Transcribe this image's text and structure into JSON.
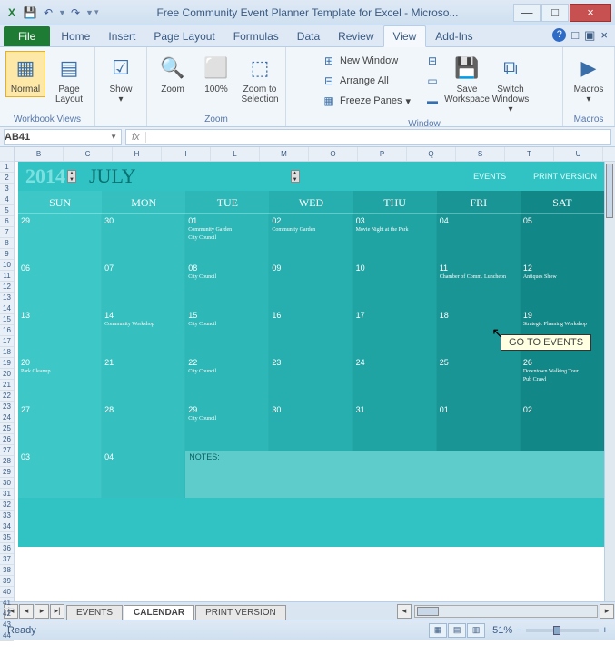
{
  "window": {
    "title": "Free Community Event Planner Template for Excel - Microso...",
    "min": "—",
    "max": "□",
    "close": "×"
  },
  "qat": {
    "excel": "X",
    "save": "💾",
    "undo": "↶",
    "redo": "↷"
  },
  "tabs": {
    "file": "File",
    "home": "Home",
    "insert": "Insert",
    "pagelayout": "Page Layout",
    "formulas": "Formulas",
    "data": "Data",
    "review": "Review",
    "view": "View",
    "addins": "Add-Ins"
  },
  "ribbon": {
    "normal": "Normal",
    "pagelayout": "Page Layout",
    "show": "Show",
    "zoom": "Zoom",
    "hundred": "100%",
    "zoomsel": "Zoom to Selection",
    "newwin": "New Window",
    "arrange": "Arrange All",
    "freeze": "Freeze Panes",
    "savews": "Save Workspace",
    "switchwin": "Switch Windows",
    "macros": "Macros",
    "g_views": "Workbook Views",
    "g_zoom": "Zoom",
    "g_window": "Window",
    "g_macros": "Macros"
  },
  "namebox": "AB41",
  "fx": "fx",
  "colheaders": [
    "B",
    "C",
    "H",
    "I",
    "L",
    "M",
    "O",
    "P",
    "Q",
    "S",
    "T",
    "U"
  ],
  "calendar": {
    "year": "2014",
    "month": "JULY",
    "events_link": "EVENTS",
    "print_link": "PRINT VERSION",
    "tooltip": "GO TO EVENTS",
    "days": [
      "SUN",
      "MON",
      "TUE",
      "WED",
      "THU",
      "FRI",
      "SAT"
    ],
    "col_colors": [
      "#3ec7c7",
      "#35bfbf",
      "#2eb7b7",
      "#27afaf",
      "#20a3a3",
      "#199595",
      "#128787"
    ],
    "weeks": [
      [
        {
          "d": "29"
        },
        {
          "d": "30"
        },
        {
          "d": "01",
          "e": [
            "Community Garden",
            "City Council"
          ]
        },
        {
          "d": "02",
          "e": [
            "Community Garden"
          ]
        },
        {
          "d": "03",
          "e": [
            "Movie Night at the Park"
          ]
        },
        {
          "d": "04"
        },
        {
          "d": "05"
        }
      ],
      [
        {
          "d": "06"
        },
        {
          "d": "07"
        },
        {
          "d": "08",
          "e": [
            "City Council"
          ]
        },
        {
          "d": "09"
        },
        {
          "d": "10"
        },
        {
          "d": "11",
          "e": [
            "Chamber of Comm. Luncheon"
          ]
        },
        {
          "d": "12",
          "e": [
            "Antiques Show"
          ]
        }
      ],
      [
        {
          "d": "13"
        },
        {
          "d": "14",
          "e": [
            "Community Workshop"
          ]
        },
        {
          "d": "15",
          "e": [
            "City Council"
          ]
        },
        {
          "d": "16"
        },
        {
          "d": "17"
        },
        {
          "d": "18"
        },
        {
          "d": "19",
          "e": [
            "Strategic Planning Workshop"
          ]
        }
      ],
      [
        {
          "d": "20",
          "e": [
            "Park Cleanup"
          ]
        },
        {
          "d": "21"
        },
        {
          "d": "22",
          "e": [
            "City Council"
          ]
        },
        {
          "d": "23"
        },
        {
          "d": "24"
        },
        {
          "d": "25"
        },
        {
          "d": "26",
          "e": [
            "Downtown Walking Tour",
            "Pub Crawl"
          ]
        }
      ],
      [
        {
          "d": "27"
        },
        {
          "d": "28"
        },
        {
          "d": "29",
          "e": [
            "City Council"
          ]
        },
        {
          "d": "30"
        },
        {
          "d": "31"
        },
        {
          "d": "01"
        },
        {
          "d": "02"
        }
      ]
    ],
    "lastrow": [
      {
        "d": "03"
      },
      {
        "d": "04"
      }
    ],
    "notes_label": "NOTES:"
  },
  "sheettabs": {
    "events": "EVENTS",
    "calendar": "CALENDAR",
    "print": "PRINT VERSION"
  },
  "status": {
    "ready": "Ready",
    "zoom": "51%"
  }
}
